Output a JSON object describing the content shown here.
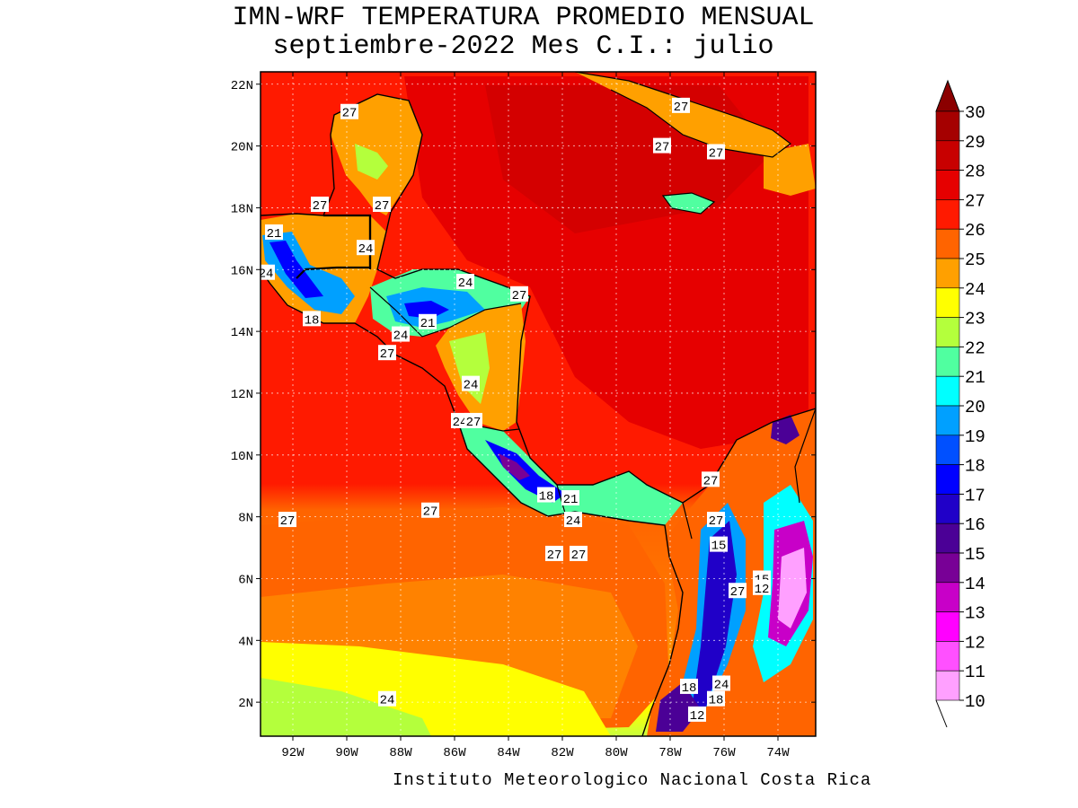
{
  "title": {
    "line1": "IMN-WRF  TEMPERATURA PROMEDIO MENSUAL",
    "line2": "septiembre-2022 Mes C.I.: julio"
  },
  "credit": "Instituto Meteorologico Nacional Costa Rica",
  "axes": {
    "x_ticks": [
      "92W",
      "90W",
      "88W",
      "86W",
      "84W",
      "82W",
      "80W",
      "78W",
      "76W",
      "74W"
    ],
    "y_ticks": [
      "22N",
      "20N",
      "18N",
      "16N",
      "14N",
      "12N",
      "10N",
      "8N",
      "6N",
      "4N",
      "2N"
    ],
    "lon_range": [
      -93.2,
      -72.6
    ],
    "lat_range": [
      0.9,
      22.4
    ]
  },
  "colorbar": {
    "levels": [
      "30",
      "29",
      "28",
      "27",
      "26",
      "25",
      "24",
      "23",
      "22",
      "21",
      "20",
      "19",
      "18",
      "17",
      "16",
      "15",
      "14",
      "13",
      "12",
      "11",
      "10"
    ],
    "colors": [
      "#a50000",
      "#c80000",
      "#e60000",
      "#ff1a00",
      "#ff6400",
      "#ffa000",
      "#ffff00",
      "#b4ff3c",
      "#50ffa0",
      "#00ffff",
      "#00a0ff",
      "#0050ff",
      "#0000ff",
      "#2000c8",
      "#4b0096",
      "#780096",
      "#c800c8",
      "#ff00ff",
      "#ff50ff",
      "#ffa0ff"
    ],
    "top_arrow_color": "#8b0000"
  },
  "contour_labels": [
    {
      "text": "27",
      "lon": -89.9,
      "lat": 21.1
    },
    {
      "text": "27",
      "lon": -77.6,
      "lat": 21.3
    },
    {
      "text": "27",
      "lon": -78.3,
      "lat": 20.0
    },
    {
      "text": "27",
      "lon": -76.3,
      "lat": 19.8
    },
    {
      "text": "27",
      "lon": -91.0,
      "lat": 18.1
    },
    {
      "text": "27",
      "lon": -88.7,
      "lat": 18.1
    },
    {
      "text": "21",
      "lon": -92.7,
      "lat": 17.2
    },
    {
      "text": "24",
      "lon": -89.3,
      "lat": 16.7
    },
    {
      "text": "24",
      "lon": -93.0,
      "lat": 15.9
    },
    {
      "text": "24",
      "lon": -85.6,
      "lat": 15.6
    },
    {
      "text": "27",
      "lon": -83.6,
      "lat": 15.2
    },
    {
      "text": "18",
      "lon": -91.3,
      "lat": 14.4
    },
    {
      "text": "21",
      "lon": -87.0,
      "lat": 14.3
    },
    {
      "text": "24",
      "lon": -88.0,
      "lat": 13.9
    },
    {
      "text": "27",
      "lon": -88.5,
      "lat": 13.3
    },
    {
      "text": "24",
      "lon": -85.4,
      "lat": 12.3
    },
    {
      "text": "24",
      "lon": -85.8,
      "lat": 11.1
    },
    {
      "text": "27",
      "lon": -85.3,
      "lat": 11.1
    },
    {
      "text": "27",
      "lon": -76.5,
      "lat": 9.2
    },
    {
      "text": "18",
      "lon": -82.6,
      "lat": 8.7
    },
    {
      "text": "21",
      "lon": -81.7,
      "lat": 8.6
    },
    {
      "text": "27",
      "lon": -92.2,
      "lat": 7.9
    },
    {
      "text": "27",
      "lon": -86.9,
      "lat": 8.2
    },
    {
      "text": "24",
      "lon": -81.6,
      "lat": 7.9
    },
    {
      "text": "27",
      "lon": -76.3,
      "lat": 7.9
    },
    {
      "text": "15",
      "lon": -76.2,
      "lat": 7.1
    },
    {
      "text": "27",
      "lon": -82.3,
      "lat": 6.8
    },
    {
      "text": "27",
      "lon": -81.4,
      "lat": 6.8
    },
    {
      "text": "15",
      "lon": -74.6,
      "lat": 6.0
    },
    {
      "text": "12",
      "lon": -74.6,
      "lat": 5.7
    },
    {
      "text": "27",
      "lon": -75.5,
      "lat": 5.6
    },
    {
      "text": "18",
      "lon": -77.3,
      "lat": 2.5
    },
    {
      "text": "24",
      "lon": -76.1,
      "lat": 2.6
    },
    {
      "text": "18",
      "lon": -76.3,
      "lat": 2.1
    },
    {
      "text": "24",
      "lon": -88.5,
      "lat": 2.1
    },
    {
      "text": "12",
      "lon": -77.0,
      "lat": 1.6
    }
  ]
}
